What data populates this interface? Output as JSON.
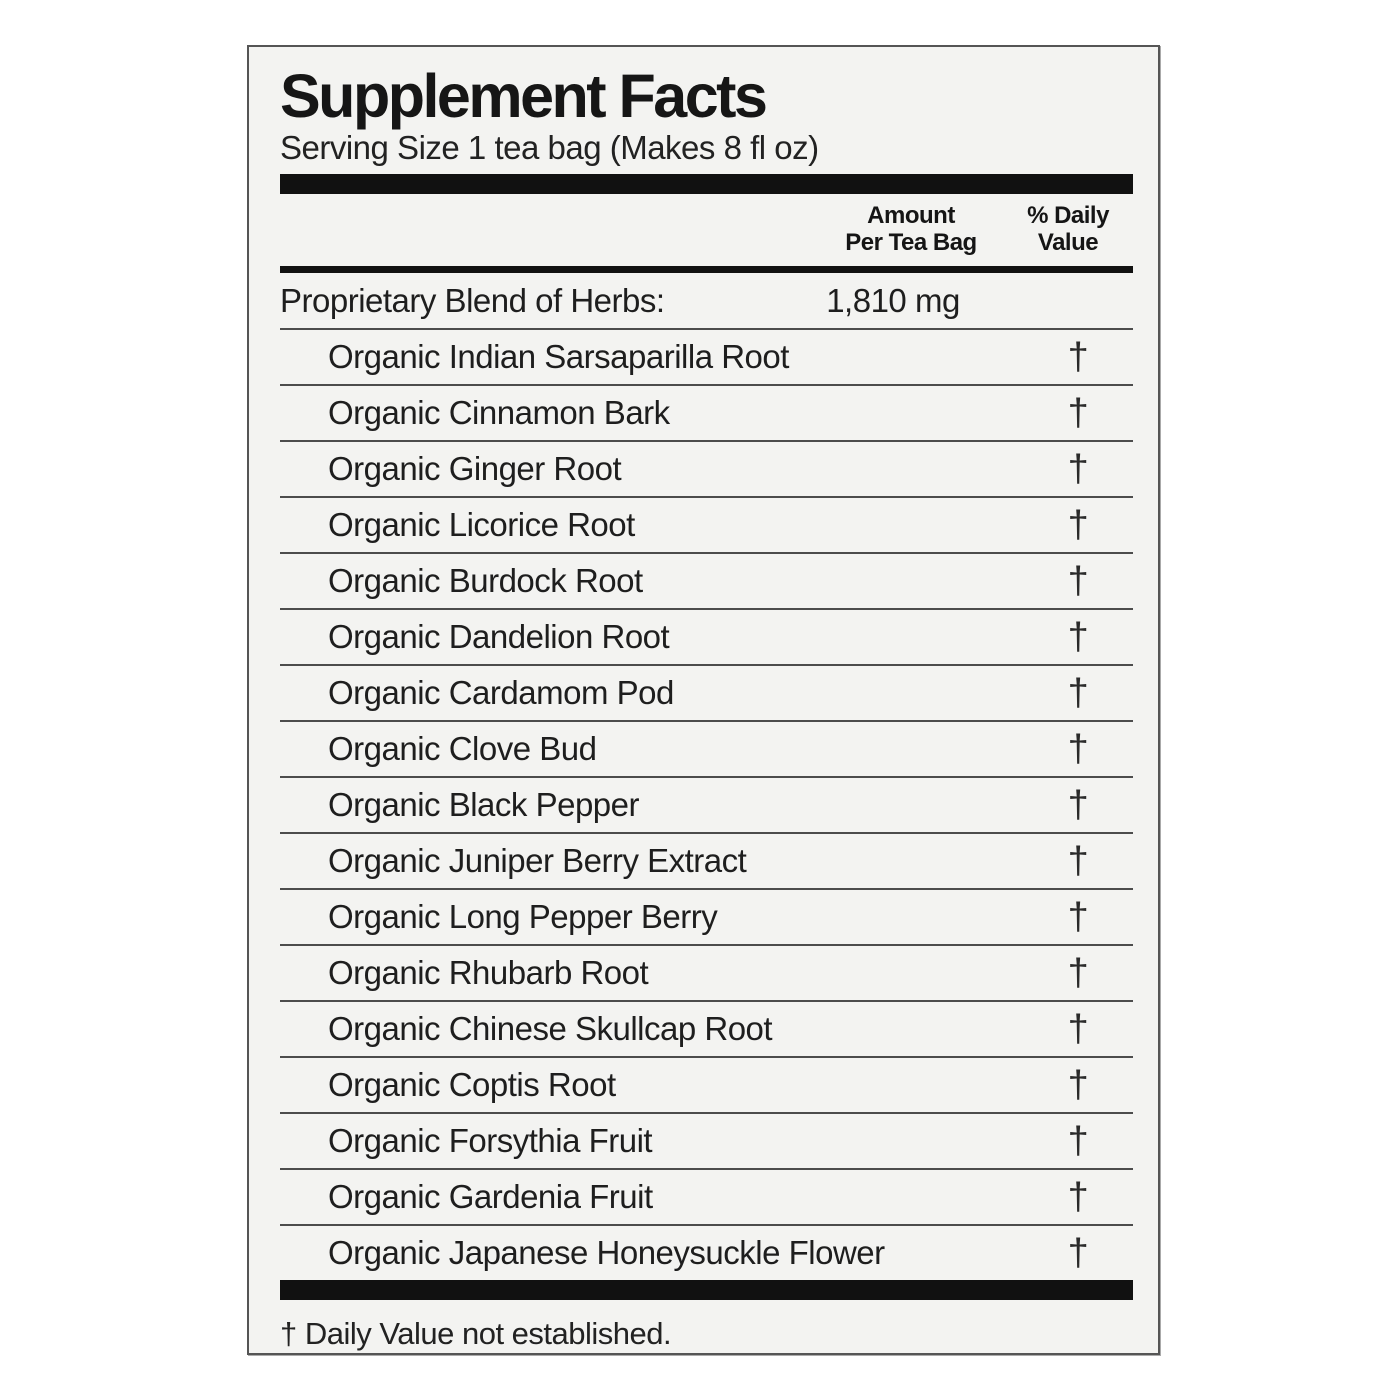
{
  "colors": {
    "page_bg": "#ffffff",
    "label_bg": "#f3f3f1",
    "ink": "#1e1e1e",
    "bar": "#111111",
    "rule": "#4c4c4c",
    "border": "#555555"
  },
  "label": {
    "title": "Supplement Facts",
    "serving_size": "Serving Size 1 tea bag (Makes 8 fl oz)",
    "columns": {
      "amount_line1": "Amount",
      "amount_line2": "Per Tea Bag",
      "dv_line1": "% Daily",
      "dv_line2": "Value"
    },
    "blend": {
      "name": "Proprietary Blend of Herbs:",
      "amount": "1,810 mg"
    },
    "ingredients": [
      {
        "name": "Organic Indian Sarsaparilla Root",
        "dv": "†"
      },
      {
        "name": "Organic Cinnamon Bark",
        "dv": "†"
      },
      {
        "name": "Organic Ginger Root",
        "dv": "†"
      },
      {
        "name": "Organic Licorice Root",
        "dv": "†"
      },
      {
        "name": "Organic Burdock Root",
        "dv": "†"
      },
      {
        "name": "Organic Dandelion Root",
        "dv": "†"
      },
      {
        "name": "Organic Cardamom Pod",
        "dv": "†"
      },
      {
        "name": "Organic Clove Bud",
        "dv": "†"
      },
      {
        "name": "Organic Black Pepper",
        "dv": "†"
      },
      {
        "name": "Organic Juniper Berry Extract",
        "dv": "†"
      },
      {
        "name": "Organic Long Pepper Berry",
        "dv": "†"
      },
      {
        "name": "Organic Rhubarb Root",
        "dv": "†"
      },
      {
        "name": "Organic Chinese Skullcap Root",
        "dv": "†"
      },
      {
        "name": "Organic Coptis Root",
        "dv": "†"
      },
      {
        "name": "Organic Forsythia Fruit",
        "dv": "†"
      },
      {
        "name": "Organic Gardenia Fruit",
        "dv": "†"
      },
      {
        "name": "Organic Japanese Honeysuckle Flower",
        "dv": "†"
      }
    ],
    "footnote": "† Daily Value not established."
  }
}
